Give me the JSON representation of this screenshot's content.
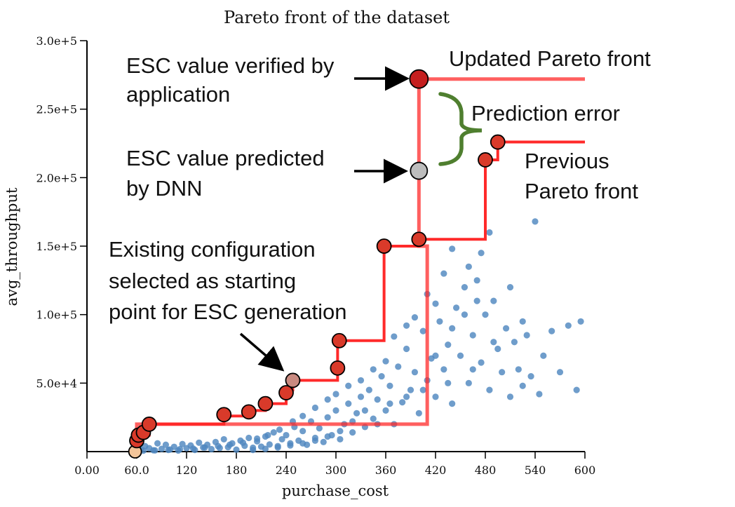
{
  "chart_data": {
    "type": "scatter",
    "title": "Pareto front of the dataset",
    "xlabel": "purchase_cost",
    "ylabel": "avg_throughput",
    "xlim": [
      0,
      600
    ],
    "ylim": [
      0,
      300000
    ],
    "xticks": [
      "0.00",
      "60.0",
      "120",
      "180",
      "240",
      "300",
      "360",
      "420",
      "480",
      "540",
      "600"
    ],
    "yticks": [
      "3.0e+5",
      "2.5e+5",
      "2.0e+5",
      "1.5e+5",
      "1.0e+5",
      "5.0e+4"
    ],
    "grid": false,
    "colors": {
      "scatter": "#4f88bf",
      "pareto_line": "#ff2a2a",
      "pareto_point": "#d93a2a",
      "highlight_point": "#c51f1f",
      "predicted_point": "#bdbdbd",
      "start_point": "#c98a80",
      "origin_point": "#f3c59a",
      "bracket": "#4f7f2f",
      "arrow": "#000000"
    },
    "series": [
      {
        "role": "scatter",
        "points": [
          [
            60,
            1000
          ],
          [
            62,
            3000
          ],
          [
            65,
            1500
          ],
          [
            70,
            4000
          ],
          [
            75,
            2500
          ],
          [
            80,
            1000
          ],
          [
            85,
            6000
          ],
          [
            90,
            2000
          ],
          [
            95,
            5000
          ],
          [
            100,
            1500
          ],
          [
            105,
            3500
          ],
          [
            110,
            800
          ],
          [
            115,
            5500
          ],
          [
            120,
            2500
          ],
          [
            125,
            4500
          ],
          [
            130,
            1200
          ],
          [
            135,
            6500
          ],
          [
            140,
            3000
          ],
          [
            145,
            5000
          ],
          [
            150,
            1800
          ],
          [
            155,
            7000
          ],
          [
            160,
            2600
          ],
          [
            165,
            9000
          ],
          [
            170,
            3200
          ],
          [
            175,
            6000
          ],
          [
            180,
            1400
          ],
          [
            185,
            8000
          ],
          [
            190,
            4200
          ],
          [
            195,
            10000
          ],
          [
            200,
            2800
          ],
          [
            205,
            7500
          ],
          [
            210,
            3600
          ],
          [
            215,
            11000
          ],
          [
            220,
            5200
          ],
          [
            225,
            14000
          ],
          [
            230,
            4000
          ],
          [
            235,
            9000
          ],
          [
            240,
            12000
          ],
          [
            245,
            6000
          ],
          [
            250,
            18000
          ],
          [
            255,
            8000
          ],
          [
            260,
            15000
          ],
          [
            265,
            5000
          ],
          [
            270,
            22000
          ],
          [
            275,
            10000
          ],
          [
            280,
            17000
          ],
          [
            285,
            7000
          ],
          [
            290,
            25000
          ],
          [
            295,
            12000
          ],
          [
            300,
            30000
          ],
          [
            305,
            9000
          ],
          [
            310,
            20000
          ],
          [
            315,
            35000
          ],
          [
            320,
            14000
          ],
          [
            325,
            28000
          ],
          [
            330,
            40000
          ],
          [
            335,
            18000
          ],
          [
            340,
            45000
          ],
          [
            345,
            24000
          ],
          [
            350,
            38000
          ],
          [
            355,
            55000
          ],
          [
            360,
            30000
          ],
          [
            365,
            48000
          ],
          [
            370,
            20000
          ],
          [
            375,
            62000
          ],
          [
            380,
            36000
          ],
          [
            385,
            75000
          ],
          [
            390,
            45000
          ],
          [
            395,
            58000
          ],
          [
            400,
            28000
          ],
          [
            405,
            88000
          ],
          [
            410,
            52000
          ],
          [
            415,
            68000
          ],
          [
            420,
            40000
          ],
          [
            425,
            95000
          ],
          [
            430,
            60000
          ],
          [
            435,
            78000
          ],
          [
            440,
            35000
          ],
          [
            445,
            105000
          ],
          [
            450,
            70000
          ],
          [
            455,
            120000
          ],
          [
            460,
            50000
          ],
          [
            465,
            85000
          ],
          [
            470,
            125000
          ],
          [
            475,
            65000
          ],
          [
            480,
            100000
          ],
          [
            485,
            45000
          ],
          [
            490,
            110000
          ],
          [
            495,
            75000
          ],
          [
            500,
            58000
          ],
          [
            505,
            90000
          ],
          [
            510,
            40000
          ],
          [
            515,
            80000
          ],
          [
            520,
            60000
          ],
          [
            525,
            48000
          ],
          [
            530,
            85000
          ],
          [
            535,
            55000
          ],
          [
            540,
            168000
          ],
          [
            545,
            42000
          ],
          [
            550,
            70000
          ],
          [
            560,
            88000
          ],
          [
            570,
            58000
          ],
          [
            580,
            92000
          ],
          [
            590,
            45000
          ],
          [
            595,
            95000
          ],
          [
            485,
            160000
          ],
          [
            475,
            145000
          ],
          [
            440,
            148000
          ],
          [
            460,
            135000
          ],
          [
            430,
            130000
          ],
          [
            420,
            108000
          ],
          [
            410,
            115000
          ],
          [
            395,
            98000
          ],
          [
            385,
            92000
          ],
          [
            370,
            84000
          ],
          [
            360,
            66000
          ],
          [
            345,
            60000
          ],
          [
            330,
            52000
          ],
          [
            315,
            48000
          ],
          [
            300,
            42000
          ],
          [
            290,
            38000
          ],
          [
            275,
            32000
          ],
          [
            260,
            26000
          ],
          [
            248,
            22000
          ],
          [
            232,
            16000
          ],
          [
            218,
            12000
          ],
          [
            205,
            9500
          ],
          [
            188,
            6500
          ],
          [
            172,
            5000
          ],
          [
            158,
            4000
          ],
          [
            142,
            3000
          ],
          [
            128,
            2200
          ],
          [
            112,
            1800
          ],
          [
            98,
            1200
          ],
          [
            82,
            900
          ],
          [
            68,
            700
          ],
          [
            55,
            500
          ],
          [
            420,
            70000
          ],
          [
            440,
            90000
          ],
          [
            455,
            100000
          ],
          [
            470,
            110000
          ],
          [
            490,
            80000
          ],
          [
            510,
            120000
          ],
          [
            525,
            95000
          ],
          [
            465,
            60000
          ],
          [
            435,
            50000
          ],
          [
            405,
            45000
          ],
          [
            385,
            40000
          ],
          [
            365,
            35000
          ],
          [
            350,
            20000
          ],
          [
            335,
            30000
          ],
          [
            320,
            22000
          ],
          [
            305,
            15000
          ],
          [
            290,
            11000
          ],
          [
            275,
            8000
          ],
          [
            260,
            6000
          ],
          [
            245,
            4500
          ],
          [
            230,
            3000
          ],
          [
            215,
            2000
          ],
          [
            200,
            1200
          ]
        ]
      },
      {
        "name": "Updated Pareto front",
        "role": "step-line",
        "points": [
          [
            60,
            0
          ],
          [
            60,
            20000
          ],
          [
            410,
            20000
          ],
          [
            410,
            150000
          ],
          [
            400,
            150000
          ],
          [
            400,
            272000
          ],
          [
            600,
            272000
          ]
        ]
      },
      {
        "name": "Previous Pareto front",
        "role": "step-line",
        "points": [
          [
            60,
            0
          ],
          [
            60,
            8000
          ],
          [
            60,
            12000
          ],
          [
            75,
            12000
          ],
          [
            75,
            20000
          ],
          [
            165,
            20000
          ],
          [
            165,
            26000
          ],
          [
            195,
            26000
          ],
          [
            195,
            30000
          ],
          [
            215,
            30000
          ],
          [
            215,
            35000
          ],
          [
            240,
            35000
          ],
          [
            240,
            45000
          ],
          [
            248,
            45000
          ],
          [
            248,
            52000
          ],
          [
            302,
            52000
          ],
          [
            302,
            81000
          ],
          [
            358,
            81000
          ],
          [
            358,
            150000
          ],
          [
            400,
            150000
          ],
          [
            400,
            155000
          ],
          [
            480,
            155000
          ],
          [
            480,
            213000
          ],
          [
            495,
            213000
          ],
          [
            495,
            226000
          ],
          [
            600,
            226000
          ]
        ]
      },
      {
        "role": "pareto-points",
        "points": [
          [
            58,
            0
          ],
          [
            60,
            8000
          ],
          [
            62,
            12000
          ],
          [
            68,
            14000
          ],
          [
            75,
            20000
          ],
          [
            165,
            27000
          ],
          [
            195,
            29000
          ],
          [
            215,
            35000
          ],
          [
            240,
            43000
          ],
          [
            248,
            52000
          ],
          [
            302,
            61000
          ],
          [
            304,
            81000
          ],
          [
            358,
            150000
          ],
          [
            400,
            155000
          ],
          [
            480,
            213000
          ],
          [
            495,
            226000
          ],
          [
            400,
            272000
          ],
          [
            400,
            205000
          ]
        ]
      }
    ],
    "annotations": [
      {
        "text_lines": [
          "ESC value verified by",
          "application"
        ]
      },
      {
        "text_lines": [
          "Updated Pareto front"
        ]
      },
      {
        "text_lines": [
          "Prediction error"
        ]
      },
      {
        "text_lines": [
          "ESC value predicted",
          "by DNN"
        ]
      },
      {
        "text_lines": [
          "Previous",
          "Pareto front"
        ]
      },
      {
        "text_lines": [
          "Existing configuration",
          "selected as starting",
          "point for ESC generation"
        ]
      }
    ]
  }
}
